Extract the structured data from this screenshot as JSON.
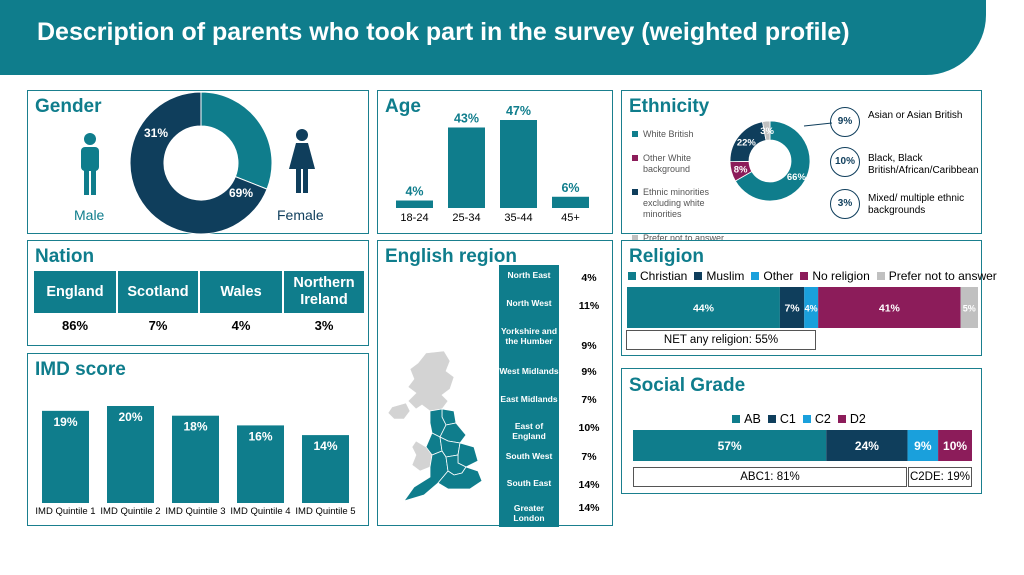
{
  "page_title": "Description of parents who took part in the survey (weighted profile)",
  "colors": {
    "teal": "#0f7d8c",
    "navy": "#0f3e5c",
    "blue": "#1aa0dc",
    "magenta": "#8c1c5a",
    "grey": "#c0c0c0"
  },
  "chart_data": [
    {
      "id": "gender",
      "type": "pie",
      "title": "Gender",
      "labels": [
        "Male",
        "Female"
      ],
      "values": [
        31,
        69
      ],
      "value_labels": [
        "31%",
        "69%"
      ],
      "colors": [
        "#0f7d8c",
        "#0f3e5c"
      ],
      "icons": [
        "male-icon",
        "female-icon"
      ]
    },
    {
      "id": "age",
      "type": "bar",
      "title": "Age",
      "categories": [
        "18-24",
        "25-34",
        "35-44",
        "45+"
      ],
      "values": [
        4,
        43,
        47,
        6
      ],
      "value_labels": [
        "4%",
        "43%",
        "47%",
        "6%"
      ],
      "ylim": [
        0,
        50
      ]
    },
    {
      "id": "ethnicity",
      "type": "pie",
      "title": "Ethnicity",
      "legend": [
        "White British",
        "Other White background",
        "Ethnic minorities excluding white minorities",
        "Prefer not to answer"
      ],
      "values": [
        66,
        8,
        22,
        3
      ],
      "value_labels": [
        "66%",
        "8%",
        "22%",
        "3%"
      ],
      "colors": [
        "#0f7d8c",
        "#8c1c5a",
        "#0f3e5c",
        "#c0c0c0"
      ],
      "breakdown": [
        {
          "value": "9%",
          "label": "Asian or Asian British"
        },
        {
          "value": "10%",
          "label": "Black, Black British/African/Caribbean"
        },
        {
          "value": "3%",
          "label": "Mixed/ multiple ethnic backgrounds"
        }
      ]
    },
    {
      "id": "nation",
      "type": "table",
      "title": "Nation",
      "categories": [
        "England",
        "Scotland",
        "Wales",
        "Northern Ireland"
      ],
      "values": [
        86,
        7,
        4,
        3
      ],
      "value_labels": [
        "86%",
        "7%",
        "4%",
        "3%"
      ]
    },
    {
      "id": "region",
      "type": "table",
      "title": "English region",
      "categories": [
        "North East",
        "North West",
        "Yorkshire and the Humber",
        "West Midlands",
        "East Midlands",
        "East of England",
        "South West",
        "South East",
        "Greater London"
      ],
      "values": [
        4,
        11,
        9,
        9,
        7,
        10,
        7,
        14,
        14
      ],
      "value_labels": [
        "4%",
        "11%",
        "9%",
        "9%",
        "7%",
        "10%",
        "7%",
        "14%",
        "14%"
      ]
    },
    {
      "id": "religion",
      "type": "bar",
      "title": "Religion",
      "stacked": true,
      "legend_position": "top",
      "series": [
        {
          "name": "Christian",
          "value": 44,
          "label": "44%",
          "color": "#0f7d8c"
        },
        {
          "name": "Muslim",
          "value": 7,
          "label": "7%",
          "color": "#0f3e5c"
        },
        {
          "name": "Other",
          "value": 4,
          "label": "4%",
          "color": "#1aa0dc"
        },
        {
          "name": "No religion",
          "value": 41,
          "label": "41%",
          "color": "#8c1c5a"
        },
        {
          "name": "Prefer not to answer",
          "value": 5,
          "label": "5%",
          "color": "#c0c0c0"
        }
      ],
      "note": "NET any religion: 55%"
    },
    {
      "id": "imd",
      "type": "bar",
      "title": "IMD score",
      "categories": [
        "IMD Quintile 1",
        "IMD Quintile 2",
        "IMD Quintile 3",
        "IMD Quintile 4",
        "IMD Quintile 5"
      ],
      "values": [
        19,
        20,
        18,
        16,
        14
      ],
      "value_labels": [
        "19%",
        "20%",
        "18%",
        "16%",
        "14%"
      ],
      "ylim": [
        0,
        21
      ]
    },
    {
      "id": "social_grade",
      "type": "bar",
      "title": "Social Grade",
      "stacked": true,
      "legend_position": "top",
      "series": [
        {
          "name": "AB",
          "value": 57,
          "label": "57%",
          "color": "#0f7d8c"
        },
        {
          "name": "C1",
          "value": 24,
          "label": "24%",
          "color": "#0f3e5c"
        },
        {
          "name": "C2",
          "value": 9,
          "label": "9%",
          "color": "#1aa0dc"
        },
        {
          "name": "D2",
          "value": 10,
          "label": "10%",
          "color": "#8c1c5a"
        }
      ],
      "notes": [
        "ABC1: 81%",
        "C2DE: 19%"
      ]
    }
  ]
}
